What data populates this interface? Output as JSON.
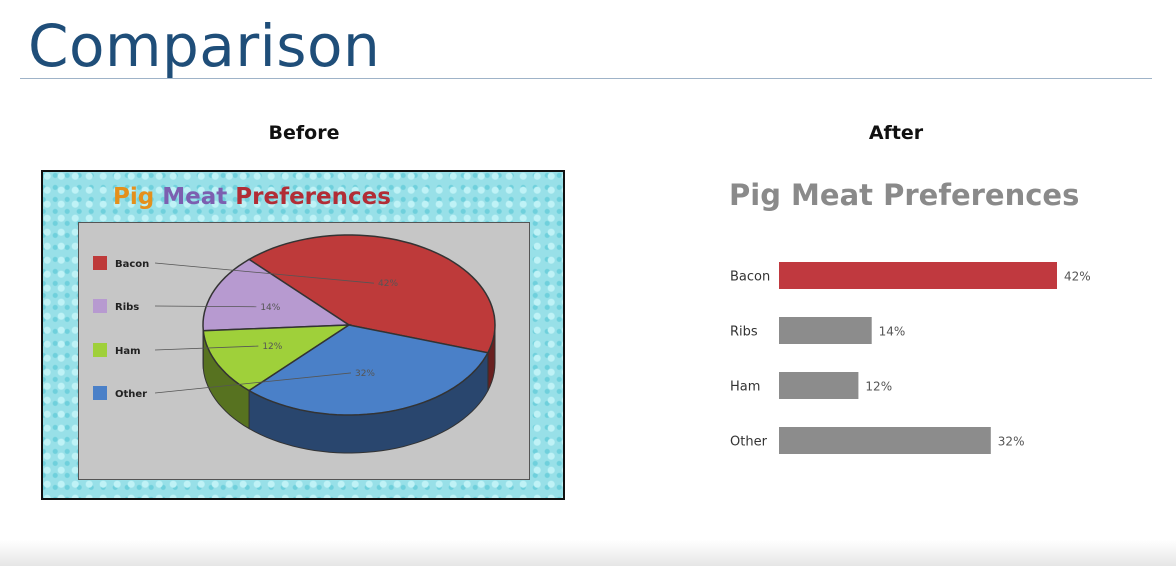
{
  "slide": {
    "title": "Comparison"
  },
  "panels": {
    "before_label": "Before",
    "after_label": "After"
  },
  "before_chart_title": {
    "w1": "Pig",
    "w2": "Meat",
    "w3": "Preferences"
  },
  "colors": {
    "title_blue": "#1f4e79",
    "bacon": "#be3a3a",
    "ribs": "#b79ad0",
    "ham": "#9fd03a",
    "other": "#4a80c8",
    "muted_bar": "#8c8c8c",
    "highlight_bar": "#c0393f"
  },
  "chart_data": [
    {
      "type": "pie",
      "title": "Pig Meat Preferences",
      "categories": [
        "Bacon",
        "Ribs",
        "Ham",
        "Other"
      ],
      "values": [
        42,
        14,
        12,
        32
      ],
      "data_labels": [
        "42%",
        "14%",
        "12%",
        "32%"
      ],
      "legend": "left",
      "style": "3d"
    },
    {
      "type": "bar",
      "orientation": "horizontal",
      "title": "Pig Meat Preferences",
      "categories": [
        "Bacon",
        "Ribs",
        "Ham",
        "Other"
      ],
      "values": [
        42,
        14,
        12,
        32
      ],
      "data_labels": [
        "42%",
        "14%",
        "12%",
        "32%"
      ],
      "highlight": "Bacon"
    }
  ]
}
